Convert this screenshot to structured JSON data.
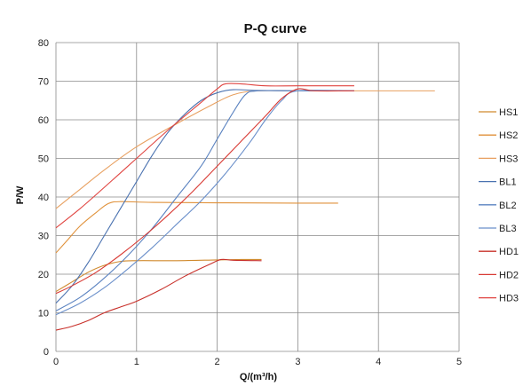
{
  "chart_data": {
    "type": "line",
    "title": "P-Q  curve",
    "xlabel": "Q/(m³/h)",
    "ylabel": "P/W",
    "xlim": [
      0,
      5
    ],
    "ylim": [
      0,
      80
    ],
    "xticks": [
      "0",
      "1",
      "2",
      "3",
      "4",
      "5"
    ],
    "yticks": [
      "0",
      "10",
      "20",
      "30",
      "40",
      "50",
      "60",
      "70",
      "80"
    ],
    "grid": true,
    "legend_position": "right",
    "series": [
      {
        "name": "HS1",
        "color": "#d08a2e",
        "points": [
          [
            0,
            15.5
          ],
          [
            0.2,
            18
          ],
          [
            0.4,
            20.5
          ],
          [
            0.6,
            22.3
          ],
          [
            0.8,
            23.3
          ],
          [
            1.0,
            23.5
          ],
          [
            1.5,
            23.5
          ],
          [
            2.0,
            23.7
          ],
          [
            2.3,
            23.8
          ],
          [
            2.55,
            23.8
          ]
        ]
      },
      {
        "name": "HS2",
        "color": "#e0913a",
        "points": [
          [
            0,
            25.5
          ],
          [
            0.15,
            29
          ],
          [
            0.3,
            32.5
          ],
          [
            0.5,
            36
          ],
          [
            0.65,
            38.3
          ],
          [
            0.8,
            38.8
          ],
          [
            1.2,
            38.6
          ],
          [
            2.0,
            38.5
          ],
          [
            3.0,
            38.4
          ],
          [
            3.5,
            38.4
          ]
        ]
      },
      {
        "name": "HS3",
        "color": "#e8a060",
        "points": [
          [
            0,
            37
          ],
          [
            0.3,
            42
          ],
          [
            0.6,
            47
          ],
          [
            1.0,
            53
          ],
          [
            1.5,
            59
          ],
          [
            1.9,
            63.5
          ],
          [
            2.2,
            66.5
          ],
          [
            2.5,
            67.5
          ],
          [
            3.0,
            67.5
          ],
          [
            4.0,
            67.5
          ],
          [
            4.7,
            67.5
          ]
        ]
      },
      {
        "name": "BL1",
        "color": "#4a72b0",
        "points": [
          [
            0,
            12.5
          ],
          [
            0.2,
            17
          ],
          [
            0.4,
            23
          ],
          [
            0.6,
            30
          ],
          [
            0.8,
            37
          ],
          [
            1.0,
            44
          ],
          [
            1.2,
            51
          ],
          [
            1.4,
            57
          ],
          [
            1.6,
            61.5
          ],
          [
            1.8,
            65
          ],
          [
            2.0,
            67
          ],
          [
            2.2,
            67.8
          ],
          [
            2.5,
            67.6
          ],
          [
            3.0,
            67.5
          ],
          [
            3.7,
            67.5
          ]
        ]
      },
      {
        "name": "BL2",
        "color": "#5a82c0",
        "points": [
          [
            0,
            10.5
          ],
          [
            0.3,
            14
          ],
          [
            0.6,
            19
          ],
          [
            0.9,
            25
          ],
          [
            1.2,
            32
          ],
          [
            1.5,
            40
          ],
          [
            1.8,
            48
          ],
          [
            2.0,
            55
          ],
          [
            2.2,
            62
          ],
          [
            2.35,
            66.5
          ],
          [
            2.5,
            67.5
          ],
          [
            3.0,
            67.5
          ],
          [
            3.7,
            67.5
          ]
        ]
      },
      {
        "name": "BL3",
        "color": "#6a8fca",
        "points": [
          [
            0,
            9.5
          ],
          [
            0.3,
            12.5
          ],
          [
            0.6,
            16.5
          ],
          [
            0.9,
            21.5
          ],
          [
            1.2,
            27
          ],
          [
            1.5,
            33
          ],
          [
            1.8,
            39
          ],
          [
            2.1,
            46
          ],
          [
            2.4,
            54
          ],
          [
            2.6,
            60
          ],
          [
            2.8,
            65
          ],
          [
            3.0,
            67.5
          ],
          [
            3.7,
            67.5
          ]
        ]
      },
      {
        "name": "HD1",
        "color": "#c8302a",
        "points": [
          [
            0,
            5.5
          ],
          [
            0.2,
            6.5
          ],
          [
            0.4,
            8
          ],
          [
            0.6,
            10
          ],
          [
            0.8,
            11.5
          ],
          [
            1.0,
            13
          ],
          [
            1.3,
            16
          ],
          [
            1.6,
            19.5
          ],
          [
            1.9,
            22.5
          ],
          [
            2.05,
            23.8
          ],
          [
            2.2,
            23.6
          ],
          [
            2.55,
            23.5
          ]
        ]
      },
      {
        "name": "HD2",
        "color": "#d83a34",
        "points": [
          [
            0,
            15
          ],
          [
            0.2,
            17
          ],
          [
            0.5,
            20.5
          ],
          [
            0.8,
            25
          ],
          [
            1.1,
            30
          ],
          [
            1.4,
            35.5
          ],
          [
            1.7,
            41.5
          ],
          [
            2.0,
            48
          ],
          [
            2.3,
            54.5
          ],
          [
            2.6,
            61
          ],
          [
            2.8,
            65.5
          ],
          [
            3.0,
            68
          ],
          [
            3.2,
            67.5
          ],
          [
            3.7,
            67.5
          ]
        ]
      },
      {
        "name": "HD3",
        "color": "#e04440",
        "points": [
          [
            0,
            32
          ],
          [
            0.3,
            37
          ],
          [
            0.6,
            42.5
          ],
          [
            1.0,
            50
          ],
          [
            1.4,
            57.5
          ],
          [
            1.8,
            64.5
          ],
          [
            2.0,
            68
          ],
          [
            2.1,
            69.3
          ],
          [
            2.3,
            69.3
          ],
          [
            2.6,
            68.8
          ],
          [
            3.0,
            68.8
          ],
          [
            3.7,
            68.8
          ]
        ]
      }
    ]
  }
}
